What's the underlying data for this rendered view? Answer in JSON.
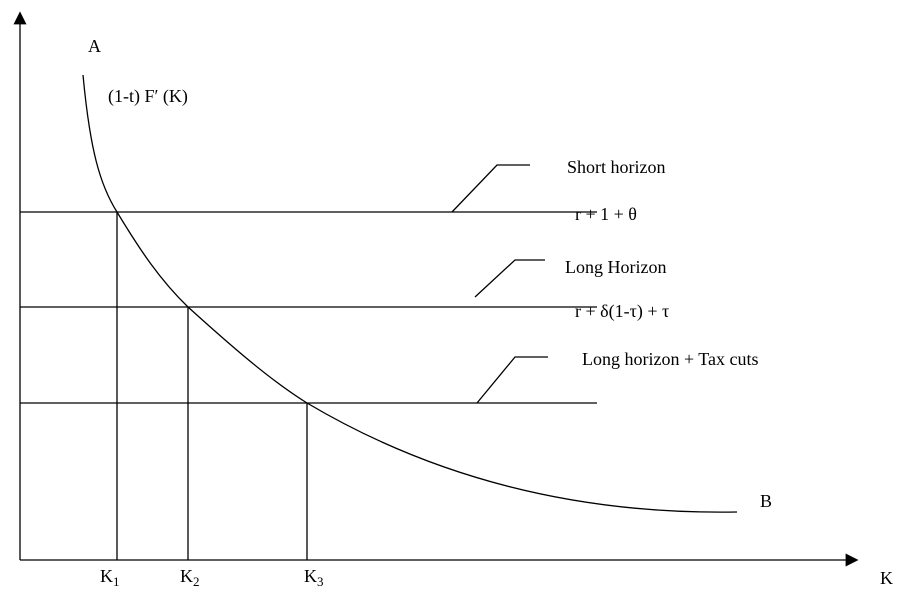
{
  "labels": {
    "top_left": "A",
    "curve": "(1-t) F′ (K)",
    "curve_end": "B",
    "x_axis": "K"
  },
  "lines": [
    {
      "name": "Short horizon",
      "formula": "r + 1 + θ"
    },
    {
      "name": "Long Horizon",
      "formula": "r + δ(1-τ) + τ"
    },
    {
      "name": "Long horizon + Tax cuts"
    }
  ],
  "k_labels": [
    {
      "base": "K",
      "sub": "1"
    },
    {
      "base": "K",
      "sub": "2"
    },
    {
      "base": "K",
      "sub": "3"
    }
  ]
}
